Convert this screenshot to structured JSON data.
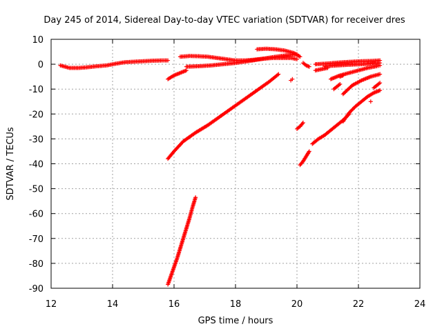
{
  "chart_data": {
    "type": "scatter",
    "title": "Day 245 of 2014, Sidereal Day-to-day VTEC variation (SDTVAR) for receiver dres",
    "xlabel": "GPS time / hours",
    "ylabel": "SDTVAR / TECUs",
    "xlim": [
      12,
      24
    ],
    "ylim": [
      -90,
      10
    ],
    "x_ticks": [
      12,
      14,
      16,
      18,
      20,
      22,
      24
    ],
    "y_ticks": [
      10,
      0,
      -10,
      -20,
      -30,
      -40,
      -50,
      -60,
      -70,
      -80,
      -90
    ],
    "grid": true,
    "marker": "+",
    "color": "#ff0000",
    "series": [
      {
        "x": [
          12.3,
          12.6,
          12.9,
          13.2,
          13.5,
          13.8,
          14.1,
          14.4,
          14.7,
          15.0,
          15.3,
          15.6,
          15.8
        ],
        "y": [
          -0.5,
          -1.5,
          -1.5,
          -1.2,
          -0.8,
          -0.5,
          0.2,
          0.8,
          1.0,
          1.2,
          1.4,
          1.5,
          1.5
        ]
      },
      {
        "x": [
          15.8,
          16.0,
          16.2,
          16.4
        ],
        "y": [
          -6.0,
          -4.5,
          -3.5,
          -2.5
        ]
      },
      {
        "x": [
          16.2,
          16.5,
          16.8,
          17.1,
          17.4,
          17.7,
          18.0,
          18.3,
          18.6,
          18.9,
          19.2,
          19.5,
          19.8,
          20.0
        ],
        "y": [
          3.0,
          3.3,
          3.2,
          3.0,
          2.5,
          2.0,
          1.5,
          1.5,
          1.8,
          2.2,
          2.5,
          2.5,
          2.5,
          2.0
        ]
      },
      {
        "x": [
          16.4,
          16.8,
          17.2,
          17.6,
          18.0,
          18.4,
          18.8,
          19.2,
          19.6,
          20.0
        ],
        "y": [
          -1.0,
          -0.8,
          -0.5,
          0.0,
          0.5,
          1.2,
          2.0,
          2.8,
          3.5,
          4.0
        ]
      },
      {
        "x": [
          18.7,
          19.0,
          19.3,
          19.6,
          19.9,
          20.1
        ],
        "y": [
          6.0,
          6.2,
          6.0,
          5.5,
          4.5,
          3.0
        ]
      },
      {
        "x": [
          15.8,
          16.0,
          16.3,
          16.7,
          17.1,
          17.5,
          17.9,
          18.3,
          18.7,
          19.1,
          19.4
        ],
        "y": [
          -38,
          -35,
          -31,
          -27.5,
          -24.5,
          -21,
          -17.5,
          -14,
          -10.5,
          -7,
          -4
        ]
      },
      {
        "x": [
          15.8,
          15.9,
          16.0,
          16.1,
          16.2,
          16.3,
          16.4,
          16.5,
          16.6,
          16.7
        ],
        "y": [
          -88.5,
          -85,
          -81.5,
          -78,
          -74,
          -70,
          -66,
          -62,
          -57.5,
          -53.5
        ]
      },
      {
        "x": [
          19.8,
          19.85
        ],
        "y": [
          -6.5,
          -6.0
        ]
      },
      {
        "x": [
          20.0,
          20.1,
          20.2
        ],
        "y": [
          -26,
          -25,
          -23.5
        ]
      },
      {
        "x": [
          20.1,
          20.2,
          20.3,
          20.4
        ],
        "y": [
          -40.5,
          -39,
          -37,
          -35
        ]
      },
      {
        "x": [
          20.5,
          20.7,
          20.9,
          21.1,
          21.3,
          21.5,
          21.7
        ],
        "y": [
          -32,
          -30,
          -28.5,
          -26.5,
          -24.5,
          -22.5,
          -20
        ]
      },
      {
        "x": [
          20.6,
          21.0
        ],
        "y": [
          -2.5,
          -1.5
        ]
      },
      {
        "x": [
          20.2,
          20.3,
          20.4
        ],
        "y": [
          0.5,
          -0.5,
          -1.0
        ]
      },
      {
        "x": [
          20.6,
          20.9,
          21.2,
          21.5,
          21.8,
          22.1,
          22.4,
          22.7
        ],
        "y": [
          0.0,
          0.2,
          0.5,
          0.8,
          1.0,
          1.2,
          1.3,
          1.5
        ]
      },
      {
        "x": [
          20.9,
          21.3,
          21.7,
          22.1,
          22.5,
          22.7
        ],
        "y": [
          -0.8,
          -0.5,
          -0.2,
          0.0,
          0.3,
          0.5
        ]
      },
      {
        "x": [
          21.1,
          21.4,
          21.7,
          22.0,
          22.3,
          22.6,
          22.7
        ],
        "y": [
          -6,
          -4.5,
          -3.5,
          -2.5,
          -1.5,
          -0.8,
          -0.5
        ]
      },
      {
        "x": [
          21.2,
          21.3,
          21.4
        ],
        "y": [
          -10,
          -9,
          -8
        ]
      },
      {
        "x": [
          21.5,
          21.8,
          22.1,
          22.4,
          22.7
        ],
        "y": [
          -12,
          -8.5,
          -6.5,
          -5.0,
          -4.0
        ]
      },
      {
        "x": [
          21.4,
          21.5
        ],
        "y": [
          -5.0,
          -4.5
        ]
      },
      {
        "x": [
          21.5,
          21.7,
          21.9,
          22.1,
          22.3,
          22.5,
          22.7
        ],
        "y": [
          -23,
          -19.5,
          -17,
          -15,
          -13,
          -11.5,
          -10.5
        ]
      },
      {
        "x": [
          22.4
        ],
        "y": [
          -15
        ]
      },
      {
        "x": [
          22.5,
          22.6,
          22.7
        ],
        "y": [
          -9.5,
          -8.5,
          -7.5
        ]
      }
    ]
  }
}
